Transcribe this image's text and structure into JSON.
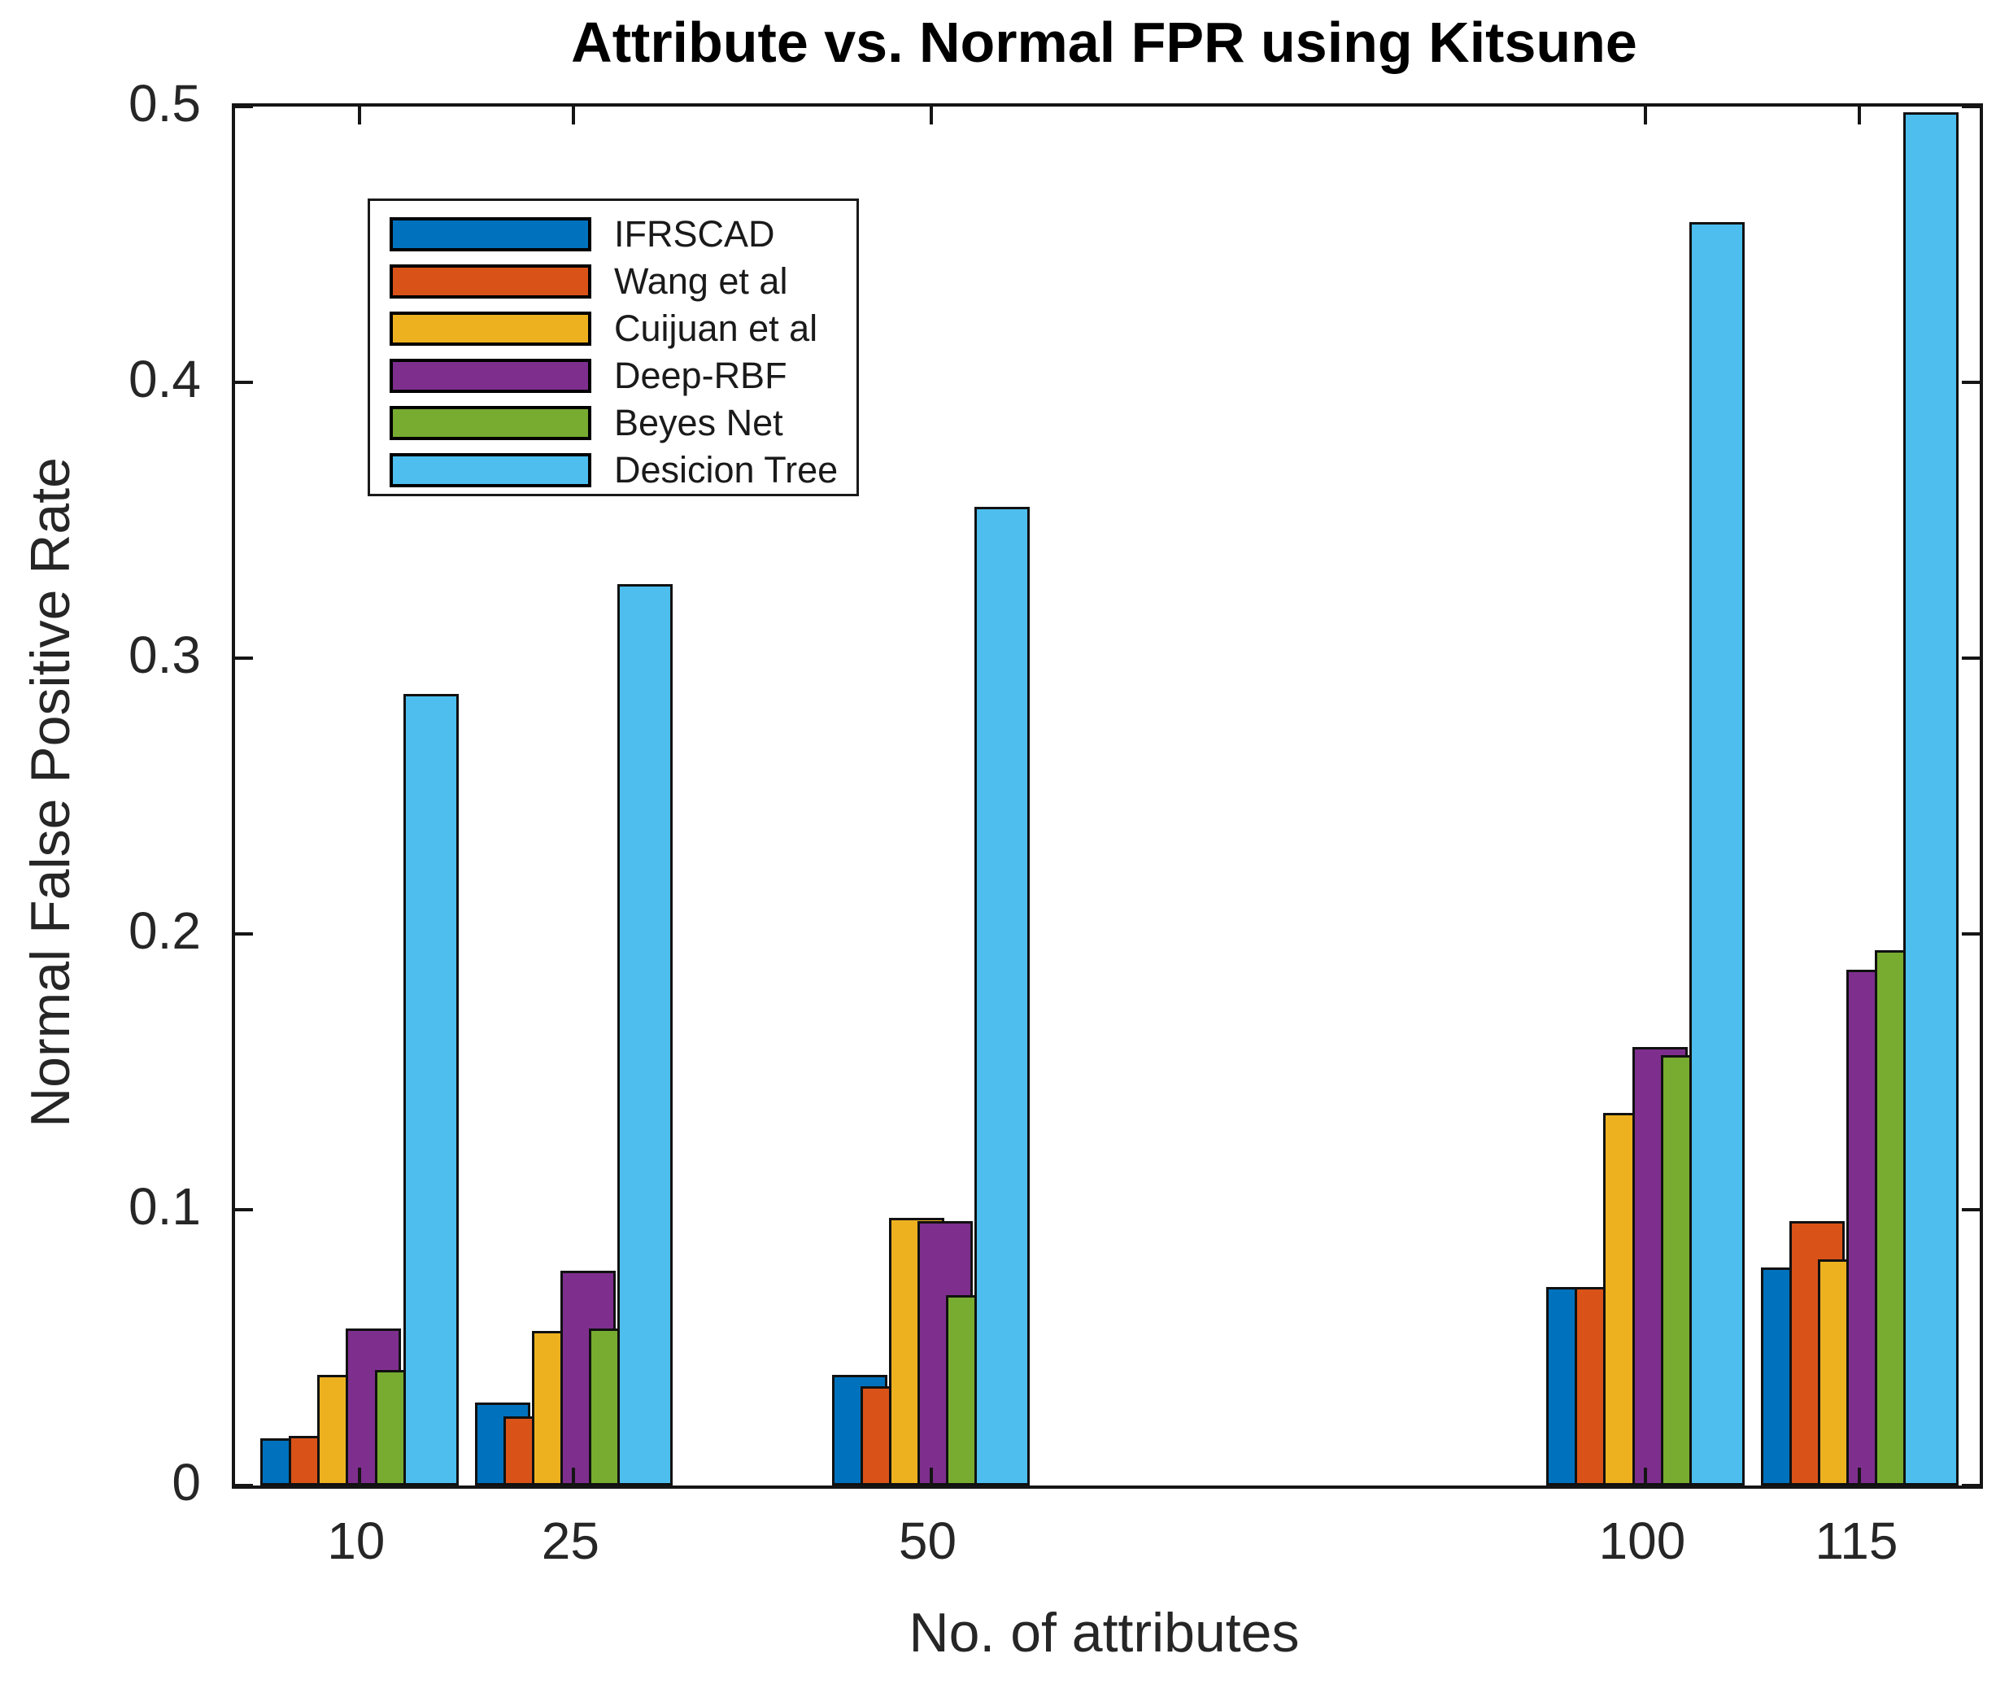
{
  "title": "Attribute vs. Normal FPR using Kitsune",
  "chart_data": {
    "type": "bar",
    "title": "Attribute vs. Normal FPR using Kitsune",
    "xlabel": "No. of attributes",
    "ylabel": "Normal False Positive Rate",
    "x": [
      10,
      25,
      50,
      100,
      115
    ],
    "x_tick_labels": [
      "10",
      "25",
      "50",
      "100",
      "115"
    ],
    "y_ticks": [
      0,
      0.1,
      0.2,
      0.3,
      0.4,
      0.5
    ],
    "y_tick_labels": [
      "0",
      "0.1",
      "0.2",
      "0.3",
      "0.4",
      "0.5"
    ],
    "ylim": [
      0,
      0.5
    ],
    "xlim": [
      1.3,
      123.4
    ],
    "grid": false,
    "legend_position": "upper-left-inside",
    "bar_style": "grouped-overlapping",
    "series": [
      {
        "name": "IFRSCAD",
        "color": "#0072BD",
        "values": [
          0.017,
          0.03,
          0.04,
          0.072,
          0.079
        ]
      },
      {
        "name": "Wang et al",
        "color": "#D95319",
        "values": [
          0.018,
          0.025,
          0.036,
          0.072,
          0.096
        ]
      },
      {
        "name": "Cuijuan et al",
        "color": "#EDB120",
        "values": [
          0.04,
          0.056,
          0.097,
          0.135,
          0.082
        ]
      },
      {
        "name": "Deep-RBF",
        "color": "#7E2F8E",
        "values": [
          0.057,
          0.078,
          0.096,
          0.159,
          0.187
        ]
      },
      {
        "name": "Beyes Net",
        "color": "#77AC30",
        "values": [
          0.042,
          0.057,
          0.069,
          0.156,
          0.194
        ]
      },
      {
        "name": "Desicion Tree",
        "color": "#4DBEEE",
        "values": [
          0.287,
          0.327,
          0.355,
          0.458,
          0.498
        ]
      }
    ]
  }
}
